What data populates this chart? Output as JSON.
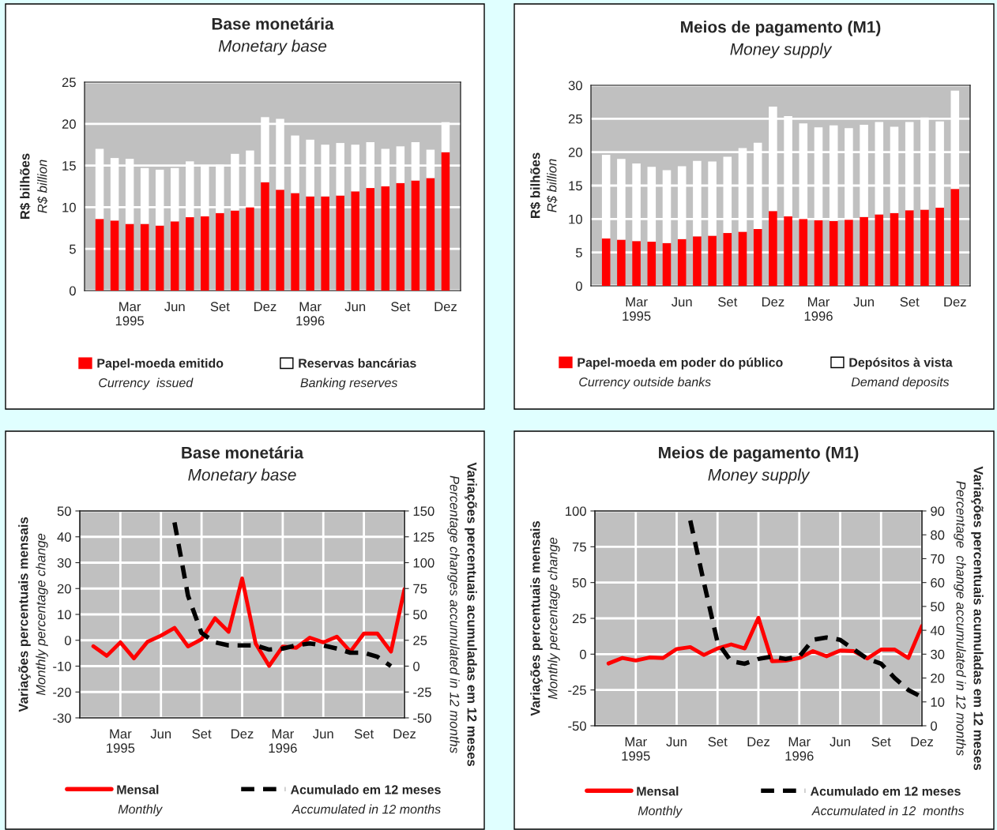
{
  "chart_data": [
    {
      "type": "bar",
      "stacked": true,
      "title": "Base monetária",
      "subtitle": "Monetary base",
      "ylabel": "R$ bilhões\nR$ billion",
      "categories": [
        null,
        null,
        "Mar\n1995",
        null,
        null,
        "Jun",
        null,
        null,
        "Set",
        null,
        null,
        "Dez",
        null,
        null,
        "Mar\n1996",
        null,
        null,
        "Jun",
        null,
        null,
        "Set",
        null,
        null,
        "Dez"
      ],
      "series": [
        {
          "name": "Papel-moeda emitido",
          "color": "#ff0000",
          "values": [
            8.6,
            8.4,
            8.0,
            8.0,
            7.8,
            8.3,
            8.8,
            8.9,
            9.3,
            9.6,
            10.0,
            13.0,
            12.1,
            11.7,
            11.3,
            11.3,
            11.4,
            11.9,
            12.3,
            12.5,
            12.9,
            13.2,
            13.5,
            16.6
          ]
        },
        {
          "name": "Reservas bancárias",
          "color": "#ffffff",
          "values": [
            8.4,
            7.5,
            7.8,
            6.7,
            6.7,
            6.4,
            6.7,
            6.1,
            5.8,
            6.8,
            6.8,
            7.8,
            8.5,
            6.9,
            6.8,
            6.2,
            6.3,
            5.6,
            5.5,
            4.5,
            4.4,
            4.6,
            3.4,
            3.6
          ]
        }
      ],
      "annotations": [
        "Currency  issued",
        "Banking reserves"
      ],
      "ylim": [
        0,
        25
      ],
      "yticks": [
        0,
        5,
        10,
        15,
        20,
        25
      ],
      "grid": "y",
      "legend": "bottom"
    },
    {
      "type": "bar",
      "stacked": true,
      "title": "Meios de pagamento (M1)",
      "subtitle": "Money supply",
      "ylabel": "R$ bilhões\nR$ billion",
      "categories": [
        null,
        null,
        "Mar\n1995",
        null,
        null,
        "Jun",
        null,
        null,
        "Set",
        null,
        null,
        "Dez",
        null,
        null,
        "Mar\n1996",
        null,
        null,
        "Jun",
        null,
        null,
        "Set",
        null,
        null,
        "Dez"
      ],
      "series": [
        {
          "name": "Papel-moeda em poder do público",
          "color": "#ff0000",
          "values": [
            7.1,
            6.9,
            6.7,
            6.6,
            6.4,
            7.0,
            7.4,
            7.5,
            7.9,
            8.1,
            8.5,
            11.2,
            10.4,
            10.0,
            9.8,
            9.7,
            9.9,
            10.3,
            10.7,
            10.9,
            11.3,
            11.4,
            11.7,
            14.5
          ]
        },
        {
          "name": "Depósitos à vista",
          "color": "#ffffff",
          "values": [
            12.5,
            12.1,
            11.6,
            11.2,
            10.9,
            10.9,
            11.3,
            11.1,
            11.4,
            12.5,
            12.9,
            15.6,
            15.0,
            14.3,
            13.9,
            14.3,
            13.7,
            13.8,
            13.8,
            12.9,
            13.2,
            13.8,
            12.9,
            14.7
          ]
        }
      ],
      "annotations": [
        "Currency outside banks",
        "Demand deposits"
      ],
      "ylim": [
        0,
        30
      ],
      "yticks": [
        0,
        5,
        10,
        15,
        20,
        25,
        30
      ],
      "grid": "y",
      "legend": "bottom"
    },
    {
      "type": "line",
      "title": "Base monetária",
      "subtitle": "Monetary base",
      "ylabel": "Variações percentuais mensais\nMonthly percentage change",
      "y2label": "Variações percentuais acumuladas em 12 meses\nPercentage changes accumulated in 12 months",
      "categories": [
        null,
        null,
        "Mar\n1995",
        null,
        null,
        "Jun",
        null,
        null,
        "Set",
        null,
        null,
        "Dez",
        null,
        null,
        "Mar\n1996",
        null,
        null,
        "Jun",
        null,
        null,
        "Set",
        null,
        null,
        "Dez"
      ],
      "series": [
        {
          "name": "Mensal",
          "color": "#ff0000",
          "line_style": "solid",
          "values": [
            -2.3,
            -6.0,
            -0.8,
            -7.0,
            -0.6,
            1.8,
            4.8,
            -2.4,
            0.4,
            8.5,
            3.3,
            23.9,
            -1.3,
            -9.9,
            -2.4,
            -2.9,
            1.0,
            -0.8,
            1.4,
            -4.4,
            2.6,
            2.6,
            -4.4,
            19.8
          ]
        },
        {
          "name": "Acumulado em 12 meses",
          "color": "#000000",
          "line_style": "dashed",
          "axis": "y2",
          "values": [
            null,
            null,
            null,
            null,
            null,
            null,
            139,
            68,
            32,
            23,
            20,
            20,
            20,
            16,
            17,
            20,
            22,
            20,
            17,
            13,
            13,
            9,
            0,
            null
          ]
        }
      ],
      "annotations": [
        "Monthly",
        "Accumulated in 12 months"
      ],
      "ylim": [
        -30,
        50
      ],
      "yticks": [
        -30,
        -20,
        -10,
        0,
        10,
        20,
        30,
        40,
        50
      ],
      "y2lim": [
        -50,
        150
      ],
      "y2ticks": [
        -50,
        -25,
        0,
        25,
        50,
        75,
        100,
        125,
        150
      ],
      "grid": true,
      "legend": "bottom"
    },
    {
      "type": "line",
      "title": "Meios de pagamento (M1)",
      "subtitle": "Money supply",
      "ylabel": "Variações percentuais mensais\nMonthly percentage change",
      "y2label": "Variações percentuais acumuladas em 12 meses\nPercentage  change accumulated in 12 months",
      "categories": [
        null,
        null,
        "Mar\n1995",
        null,
        null,
        "Jun",
        null,
        null,
        "Set",
        null,
        null,
        "Dez",
        null,
        null,
        "Mar\n1996",
        null,
        null,
        "Jun",
        null,
        null,
        "Set",
        null,
        null,
        "Dez"
      ],
      "series": [
        {
          "name": "Mensal",
          "color": "#ff0000",
          "line_style": "solid",
          "values": [
            -6.5,
            -2.7,
            -4.4,
            -2.3,
            -2.7,
            3.6,
            4.9,
            -0.6,
            4.0,
            6.8,
            4.0,
            25.4,
            -4.9,
            -4.6,
            -2.7,
            2.1,
            -1.5,
            2.5,
            2.1,
            -3.0,
            3.2,
            3.2,
            -2.7,
            19.7
          ]
        },
        {
          "name": "Acumulado em 12 meses",
          "color": "#000000",
          "line_style": "dashed",
          "axis": "y2",
          "values": [
            null,
            null,
            null,
            null,
            null,
            null,
            86,
            60,
            35,
            27,
            26,
            28,
            29,
            28,
            29,
            36,
            37,
            36,
            32,
            28,
            26,
            20,
            15,
            12
          ]
        }
      ],
      "annotations": [
        "Monthly",
        "Accumulated in 12  months"
      ],
      "ylim": [
        -50,
        100
      ],
      "yticks": [
        -50,
        -25,
        0,
        25,
        50,
        75,
        100
      ],
      "y2lim": [
        0,
        90
      ],
      "y2ticks": [
        0,
        10,
        20,
        30,
        40,
        50,
        60,
        70,
        80,
        90
      ],
      "grid": true,
      "legend": "bottom"
    }
  ]
}
